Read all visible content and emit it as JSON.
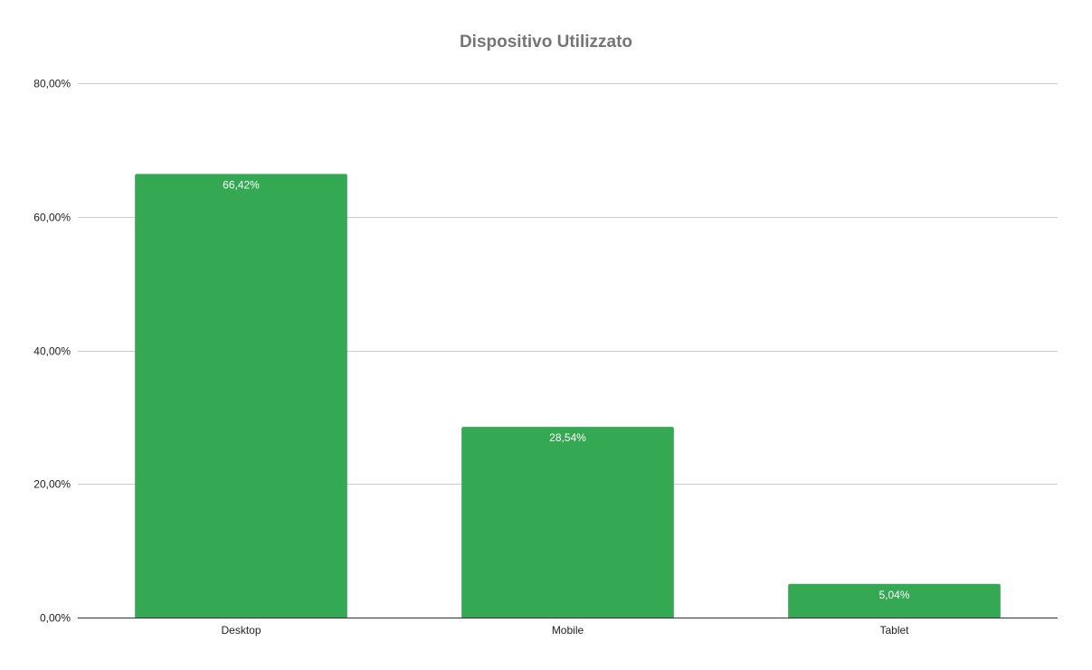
{
  "chart_data": {
    "type": "bar",
    "title": "Dispositivo Utilizzato",
    "xlabel": "",
    "ylabel": "",
    "categories": [
      "Desktop",
      "Mobile",
      "Tablet"
    ],
    "values": [
      66.42,
      28.54,
      5.04
    ],
    "data_labels": [
      "66,42%",
      "28,54%",
      "5,04%"
    ],
    "ylim": [
      0,
      80
    ],
    "yticks": [
      0,
      20,
      40,
      60,
      80
    ],
    "ytick_labels": [
      "0,00%",
      "20,00%",
      "40,00%",
      "60,00%",
      "80,00%"
    ],
    "grid": true,
    "legend": "none",
    "bar_color": "#34a853"
  }
}
